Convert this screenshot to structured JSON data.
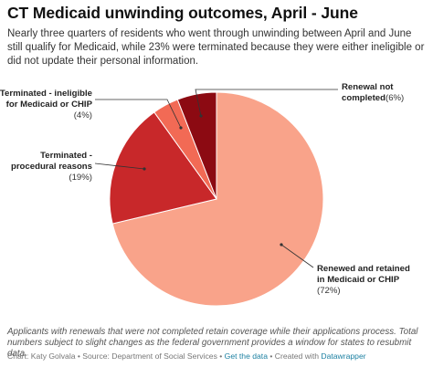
{
  "title": "CT Medicaid unwinding outcomes, April - June",
  "subtitle": "Nearly three quarters of residents who went through unwinding between April and June still qualify for Medicaid, while 23% were terminated because they were either ineligible or did not update their personal information.",
  "chart_data": {
    "type": "pie",
    "slices": [
      {
        "name": "Renewed and retained in Medicaid or CHIP",
        "pct_label": "(72%)",
        "value": 72,
        "color": "#f9a38a"
      },
      {
        "name": "Terminated - procedural reasons",
        "pct_label": "(19%)",
        "value": 19,
        "color": "#c8282a"
      },
      {
        "name": "Terminated - ineligible for Medicaid or CHIP",
        "pct_label": "(4%)",
        "value": 4,
        "color": "#f26a55"
      },
      {
        "name": "Renewal not completed",
        "pct_label": "(6%)",
        "value": 6,
        "color": "#8c0a12"
      }
    ]
  },
  "labels": {
    "renewed": {
      "line1": "Renewed and retained",
      "line2": "in Medicaid or CHIP",
      "pct": "(72%)"
    },
    "procedural": {
      "line1": "Terminated -",
      "line2": "procedural reasons",
      "pct": "(19%)"
    },
    "ineligible": {
      "line1": "Terminated - ineligible",
      "line2": "for Medicaid or CHIP",
      "pct": "(4%)"
    },
    "not_completed": {
      "line1": "Renewal not",
      "line2": "completed",
      "pct": "(6%)"
    }
  },
  "note": "Applicants with renewals that were not completed retain coverage while their applications process. Total numbers subject to slight changes as the federal government provides a window for states to resubmit data.",
  "source": {
    "prefix": "Chart: Katy Golvala • Source: Department of Social Services • ",
    "get_data": "Get the data",
    "mid": " • Created with ",
    "datawrapper": "Datawrapper"
  }
}
